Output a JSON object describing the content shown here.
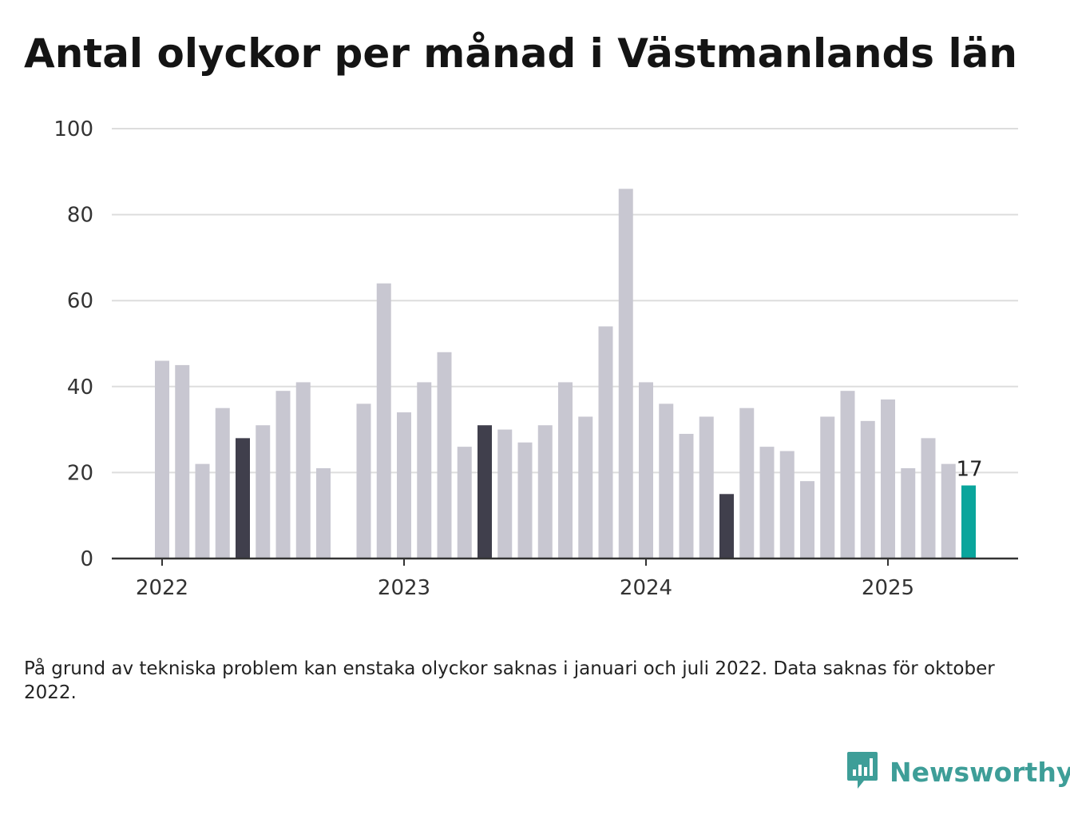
{
  "title": "Antal olyckor per månad i Västmanlands län",
  "footnote": "På grund av tekniska problem kan enstaka olyckor saknas i januari och juli 2022. Data saknas för oktober 2022.",
  "brand": {
    "name": "Newsworthy",
    "logo_icon": "newsworthy-bar-chart-bubble-icon",
    "color": "#3e9e98"
  },
  "chart_data": {
    "type": "bar",
    "title": "Antal olyckor per månad i Västmanlands län",
    "xlabel": "",
    "ylabel": "",
    "ylim": [
      0,
      100
    ],
    "yticks": [
      "0",
      "20",
      "40",
      "60",
      "80",
      "100"
    ],
    "year_ticks": [
      {
        "label": "2022",
        "month": "2022-01"
      },
      {
        "label": "2023",
        "month": "2023-01"
      },
      {
        "label": "2024",
        "month": "2024-01"
      },
      {
        "label": "2025",
        "month": "2025-01"
      }
    ],
    "grid": true,
    "categories": [
      "2022-01",
      "2022-02",
      "2022-03",
      "2022-04",
      "2022-05",
      "2022-06",
      "2022-07",
      "2022-08",
      "2022-09",
      "2022-10",
      "2022-11",
      "2022-12",
      "2023-01",
      "2023-02",
      "2023-03",
      "2023-04",
      "2023-05",
      "2023-06",
      "2023-07",
      "2023-08",
      "2023-09",
      "2023-10",
      "2023-11",
      "2023-12",
      "2024-01",
      "2024-02",
      "2024-03",
      "2024-04",
      "2024-05",
      "2024-06",
      "2024-07",
      "2024-08",
      "2024-09",
      "2024-10",
      "2024-11",
      "2024-12",
      "2025-01",
      "2025-02",
      "2025-03",
      "2025-04",
      "2025-05"
    ],
    "values": [
      46,
      45,
      22,
      35,
      28,
      31,
      39,
      41,
      21,
      null,
      36,
      64,
      34,
      41,
      48,
      26,
      31,
      30,
      27,
      31,
      41,
      33,
      54,
      86,
      41,
      36,
      29,
      33,
      15,
      35,
      26,
      25,
      18,
      33,
      39,
      32,
      37,
      21,
      28,
      22,
      17
    ],
    "highlight_months": [
      "2022-05",
      "2023-05",
      "2024-05"
    ],
    "latest_month": "2025-05",
    "latest_label": "17",
    "colors": {
      "default": "#c8c7d1",
      "highlight": "#403f4c",
      "latest": "#0aa59c",
      "grid": "#dddddd",
      "axis": "#333333"
    }
  }
}
